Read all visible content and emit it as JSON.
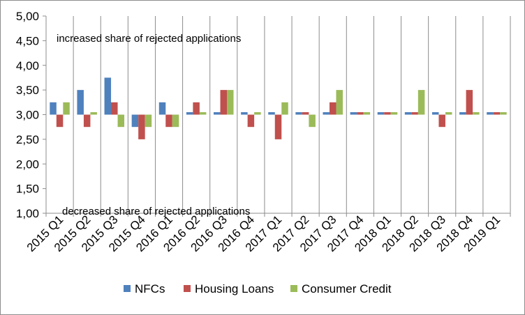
{
  "chart_data": {
    "type": "bar",
    "categories": [
      "2015 Q1",
      "2015 Q2",
      "2015 Q3",
      "2015 Q4",
      "2016 Q1",
      "2016 Q2",
      "2016 Q3",
      "2016 Q4",
      "2017 Q1",
      "2017 Q2",
      "2017 Q3",
      "2017 Q4",
      "2018 Q1",
      "2018 Q2",
      "2018 Q3",
      "2018 Q4",
      "2019 Q1"
    ],
    "series": [
      {
        "name": "NFCs",
        "color": "#4f81bd",
        "values": [
          3.25,
          3.5,
          3.75,
          2.75,
          3.25,
          3.05,
          3.05,
          3.05,
          3.05,
          3.05,
          3.05,
          3.05,
          3.05,
          3.05,
          3.05,
          3.05,
          3.05
        ]
      },
      {
        "name": "Housing Loans",
        "color": "#c0504d",
        "values": [
          2.75,
          2.75,
          3.25,
          2.5,
          2.75,
          3.25,
          3.5,
          2.75,
          2.5,
          3.05,
          3.25,
          3.05,
          3.05,
          3.05,
          2.75,
          3.5,
          3.05
        ]
      },
      {
        "name": "Consumer Credit",
        "color": "#9bbb59",
        "values": [
          3.25,
          3.05,
          2.75,
          2.75,
          2.75,
          3.05,
          3.5,
          3.05,
          3.25,
          2.75,
          3.5,
          3.05,
          3.05,
          3.5,
          3.05,
          3.05,
          3.05
        ]
      }
    ],
    "baseline": 3.0,
    "ylim": [
      1.0,
      5.0
    ],
    "yticks": [
      "1,00",
      "1,50",
      "2,00",
      "2,50",
      "3,00",
      "3,50",
      "4,00",
      "4,50",
      "5,00"
    ],
    "annotations": {
      "top": "increased  share of rejected applications",
      "bottom": "decreased share of rejected applications"
    },
    "legend_position": "bottom",
    "grid": "vertical"
  }
}
